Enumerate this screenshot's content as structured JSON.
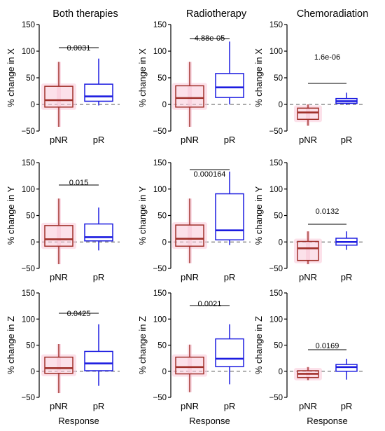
{
  "chart_data": {
    "type": "box",
    "column_titles": [
      "Both therapies",
      "Radiotherapy",
      "Chemoradiation"
    ],
    "x_axis_label": "Response",
    "categories": [
      "pNR",
      "pR"
    ],
    "y_ticks": [
      -50,
      0,
      50,
      100,
      150
    ],
    "ylim": [
      -50,
      150
    ],
    "colors": {
      "pNR": "#a0302a",
      "pR": "#1c1ce0",
      "pNR_halo": "#f9c9d8",
      "reference_line": "#555555"
    },
    "legend": "none",
    "grid": false,
    "panels": [
      {
        "ylabel": "% change in X",
        "p_value": "0.0031",
        "boxes": [
          {
            "category": "pNR",
            "whisker_low": -42,
            "q1": -5,
            "median": 8,
            "q3": 34,
            "whisker_high": 80
          },
          {
            "category": "pR",
            "whisker_low": -2,
            "q1": 6,
            "median": 15,
            "q3": 38,
            "whisker_high": 86
          }
        ]
      },
      {
        "ylabel": "% change in X",
        "p_value": "4.88e-05",
        "boxes": [
          {
            "category": "pNR",
            "whisker_low": -42,
            "q1": -5,
            "median": 12,
            "q3": 35,
            "whisker_high": 80
          },
          {
            "category": "pR",
            "whisker_low": 0,
            "q1": 13,
            "median": 32,
            "q3": 58,
            "whisker_high": 118
          }
        ]
      },
      {
        "ylabel": "% change in X",
        "p_value": "1.6e-06",
        "boxes": [
          {
            "category": "pNR",
            "whisker_low": -40,
            "q1": -28,
            "median": -15,
            "q3": -7,
            "whisker_high": 0
          },
          {
            "category": "pR",
            "whisker_low": -1,
            "q1": 2,
            "median": 6,
            "q3": 11,
            "whisker_high": 22
          }
        ]
      },
      {
        "ylabel": "% change in Y",
        "p_value": "0.015",
        "boxes": [
          {
            "category": "pNR",
            "whisker_low": -42,
            "q1": -8,
            "median": 5,
            "q3": 31,
            "whisker_high": 82
          },
          {
            "category": "pR",
            "whisker_low": -16,
            "q1": 2,
            "median": 9,
            "q3": 34,
            "whisker_high": 65
          }
        ]
      },
      {
        "ylabel": "% change in Y",
        "p_value": "0.000164",
        "boxes": [
          {
            "category": "pNR",
            "whisker_low": -40,
            "q1": -8,
            "median": 6,
            "q3": 32,
            "whisker_high": 82
          },
          {
            "category": "pR",
            "whisker_low": -6,
            "q1": 4,
            "median": 22,
            "q3": 91,
            "whisker_high": 133
          }
        ]
      },
      {
        "ylabel": "% change in Y",
        "p_value": "0.0132",
        "boxes": [
          {
            "category": "pNR",
            "whisker_low": -42,
            "q1": -35,
            "median": -12,
            "q3": 1,
            "whisker_high": 20
          },
          {
            "category": "pR",
            "whisker_low": -15,
            "q1": -6,
            "median": 0,
            "q3": 7,
            "whisker_high": 20
          }
        ]
      },
      {
        "ylabel": "% change in Z",
        "p_value": "0.0425",
        "boxes": [
          {
            "category": "pNR",
            "whisker_low": -42,
            "q1": -4,
            "median": 6,
            "q3": 27,
            "whisker_high": 52
          },
          {
            "category": "pR",
            "whisker_low": -28,
            "q1": 1,
            "median": 15,
            "q3": 38,
            "whisker_high": 90
          }
        ]
      },
      {
        "ylabel": "% change in Z",
        "p_value": "0.0021",
        "boxes": [
          {
            "category": "pNR",
            "whisker_low": -40,
            "q1": -5,
            "median": 8,
            "q3": 27,
            "whisker_high": 51
          },
          {
            "category": "pR",
            "whisker_low": -25,
            "q1": 9,
            "median": 24,
            "q3": 62,
            "whisker_high": 90
          }
        ]
      },
      {
        "ylabel": "% change in Z",
        "p_value": "0.0169",
        "boxes": [
          {
            "category": "pNR",
            "whisker_low": -17,
            "q1": -12,
            "median": -5,
            "q3": 1,
            "whisker_high": 8
          },
          {
            "category": "pR",
            "whisker_low": -16,
            "q1": 0,
            "median": 8,
            "q3": 13,
            "whisker_high": 24
          }
        ]
      }
    ]
  }
}
